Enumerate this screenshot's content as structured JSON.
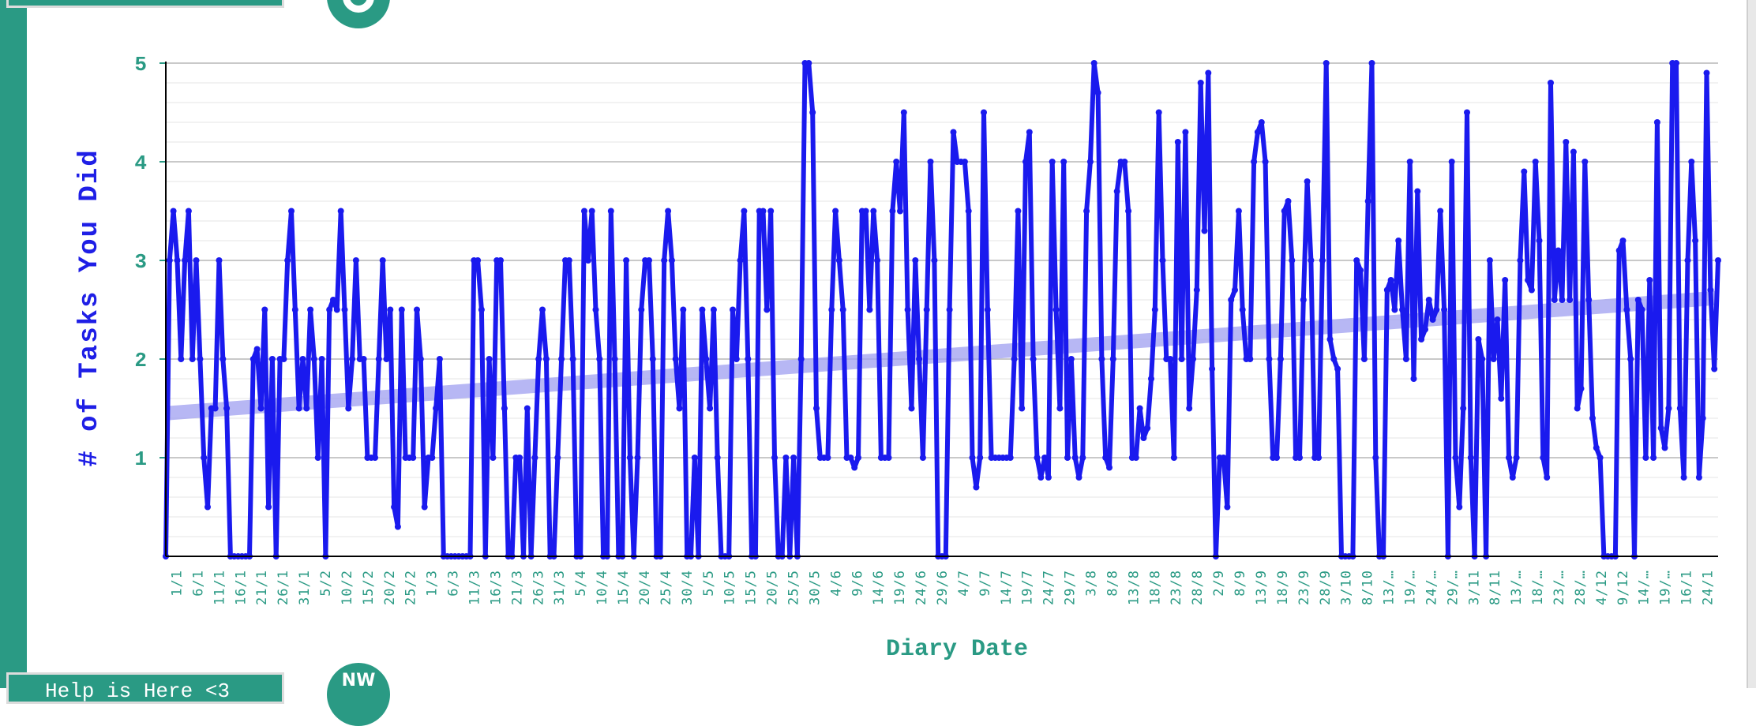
{
  "help_tab": {
    "label": "Help is Here <3"
  },
  "bottom_logo": {
    "text": "NW"
  },
  "colors": {
    "accent": "#2a9a84",
    "line": "#1a1aee",
    "trend": "#9f9ff0"
  },
  "chart_data": {
    "type": "line",
    "title": "",
    "xlabel": "Diary Date",
    "ylabel": "# of Tasks You Did",
    "ylim": [
      0,
      5
    ],
    "yticks": [
      1,
      2,
      3,
      4,
      5
    ],
    "grid": true,
    "legend": "none",
    "x_tick_labels": [
      "1/1",
      "6/1",
      "11/1",
      "16/1",
      "21/1",
      "26/1",
      "31/1",
      "5/2",
      "10/2",
      "15/2",
      "20/2",
      "25/2",
      "1/3",
      "6/3",
      "11/3",
      "16/3",
      "21/3",
      "26/3",
      "31/3",
      "5/4",
      "10/4",
      "15/4",
      "20/4",
      "25/4",
      "30/4",
      "5/5",
      "10/5",
      "15/5",
      "20/5",
      "25/5",
      "30/5",
      "4/6",
      "9/6",
      "14/6",
      "19/6",
      "24/6",
      "29/6",
      "4/7",
      "9/7",
      "14/7",
      "19/7",
      "24/7",
      "29/7",
      "3/8",
      "8/8",
      "13/8",
      "18/8",
      "23/8",
      "28/8",
      "2/9",
      "8/9",
      "13/9",
      "18/9",
      "23/9",
      "28/9",
      "3/10",
      "8/10",
      "13/…",
      "19/…",
      "24/…",
      "29/…",
      "3/11",
      "8/11",
      "13/…",
      "18/…",
      "23/…",
      "28/…",
      "4/12",
      "9/12",
      "14/…",
      "19/…",
      "16/1",
      "24/1"
    ],
    "series": [
      {
        "values": [
          0,
          3,
          3.5,
          3,
          2,
          3,
          3.5,
          2,
          3,
          2,
          1,
          0.5,
          1.5,
          1.5,
          3,
          2,
          1.5,
          0,
          0,
          0,
          0,
          0,
          0,
          2,
          2.1,
          1.5,
          2.5,
          0.5,
          2,
          0,
          2,
          2,
          3,
          3.5,
          2.5,
          1.5,
          2,
          1.5,
          2.5,
          2,
          1,
          2,
          0,
          2.5,
          2.6,
          2.5,
          3.5,
          2.5,
          1.5,
          2,
          3,
          2,
          2,
          1,
          1,
          1,
          2,
          3,
          2,
          2.5,
          0.5,
          0.3,
          2.5,
          1,
          1,
          1,
          2.5,
          2,
          0.5,
          1,
          1,
          1.5,
          2,
          0,
          0,
          0,
          0,
          0,
          0,
          0,
          0,
          3,
          3,
          2.5,
          0,
          2,
          1,
          3,
          3,
          1.5,
          0,
          0,
          1,
          1,
          0,
          1.5,
          0,
          1,
          2,
          2.5,
          2,
          0,
          0,
          1,
          2,
          3,
          3,
          2,
          0,
          0,
          3.5,
          3,
          3.5,
          2.5,
          2,
          0,
          0,
          3.5,
          2,
          0,
          0,
          3,
          1,
          0,
          1,
          2.5,
          3,
          3,
          2,
          0,
          0,
          3,
          3.5,
          3,
          2,
          1.5,
          2.5,
          0,
          0,
          1,
          0,
          2.5,
          2,
          1.5,
          2.5,
          1,
          0,
          0,
          0,
          2.5,
          2,
          3,
          3.5,
          2,
          0,
          0,
          3.5,
          3.5,
          2.5,
          3.5,
          1,
          0,
          0,
          1,
          0,
          1,
          0,
          2,
          5,
          5,
          4.5,
          1.5,
          1,
          1,
          1,
          2.5,
          3.5,
          3,
          2.5,
          1,
          1,
          0.9,
          1,
          3.5,
          3.5,
          2.5,
          3.5,
          3,
          1,
          1,
          1,
          3.5,
          4,
          3.5,
          4.5,
          2.5,
          1.5,
          3,
          2,
          1,
          2.5,
          4,
          3,
          0,
          0,
          0,
          2.5,
          4.3,
          4,
          4,
          4,
          3.5,
          1,
          0.7,
          1,
          4.5,
          2.5,
          1,
          1,
          1,
          1,
          1,
          1,
          2,
          3.5,
          1.5,
          4,
          4.3,
          2,
          1,
          0.8,
          1,
          0.8,
          4,
          2.5,
          1.5,
          4,
          1,
          2,
          1,
          0.8,
          1,
          3.5,
          4,
          5,
          4.7,
          2,
          1,
          0.9,
          2,
          3.7,
          4,
          4,
          3.5,
          1,
          1,
          1.5,
          1.2,
          1.3,
          1.8,
          2.5,
          4.5,
          3,
          2,
          2,
          1,
          4.2,
          2,
          4.3,
          1.5,
          2,
          2.7,
          4.8,
          3.3,
          4.9,
          1.9,
          0,
          1,
          1,
          0.5,
          2.6,
          2.7,
          3.5,
          2.5,
          2,
          2,
          4,
          4.3,
          4.4,
          4,
          2,
          1,
          1,
          2,
          3.5,
          3.6,
          3,
          1,
          1,
          2.6,
          3.8,
          3,
          1,
          1,
          3,
          5,
          2.2,
          2,
          1.9,
          0,
          0,
          0,
          0,
          3,
          2.9,
          2,
          3.6,
          5,
          1,
          0,
          0,
          2.7,
          2.8,
          2.5,
          3.2,
          2.5,
          2,
          4,
          1.8,
          3.7,
          2.2,
          2.3,
          2.6,
          2.4,
          2.5,
          3.5,
          2.5,
          0,
          4,
          1,
          0.5,
          1.5,
          4.5,
          1,
          0,
          2.2,
          2,
          0,
          3,
          2,
          2.4,
          1.6,
          2.8,
          1,
          0.8,
          1,
          3,
          3.9,
          2.8,
          2.7,
          4,
          3.2,
          1,
          0.8,
          4.8,
          2.6,
          3.1,
          2.6,
          4.2,
          2.6,
          4.1,
          1.5,
          1.7,
          4,
          2.6,
          1.4,
          1.1,
          1,
          0,
          0,
          0,
          0,
          3.1,
          3.2,
          2.5,
          2,
          0,
          2.6,
          2.5,
          1,
          2.8,
          1,
          4.4,
          1.3,
          1.1,
          1.5,
          5,
          5,
          1.5,
          0.8,
          3,
          4,
          3.2,
          0.8,
          1.4,
          4.9,
          2.7,
          1.9,
          3
        ]
      }
    ],
    "trend": {
      "start": 1.45,
      "end": 2.62
    }
  }
}
